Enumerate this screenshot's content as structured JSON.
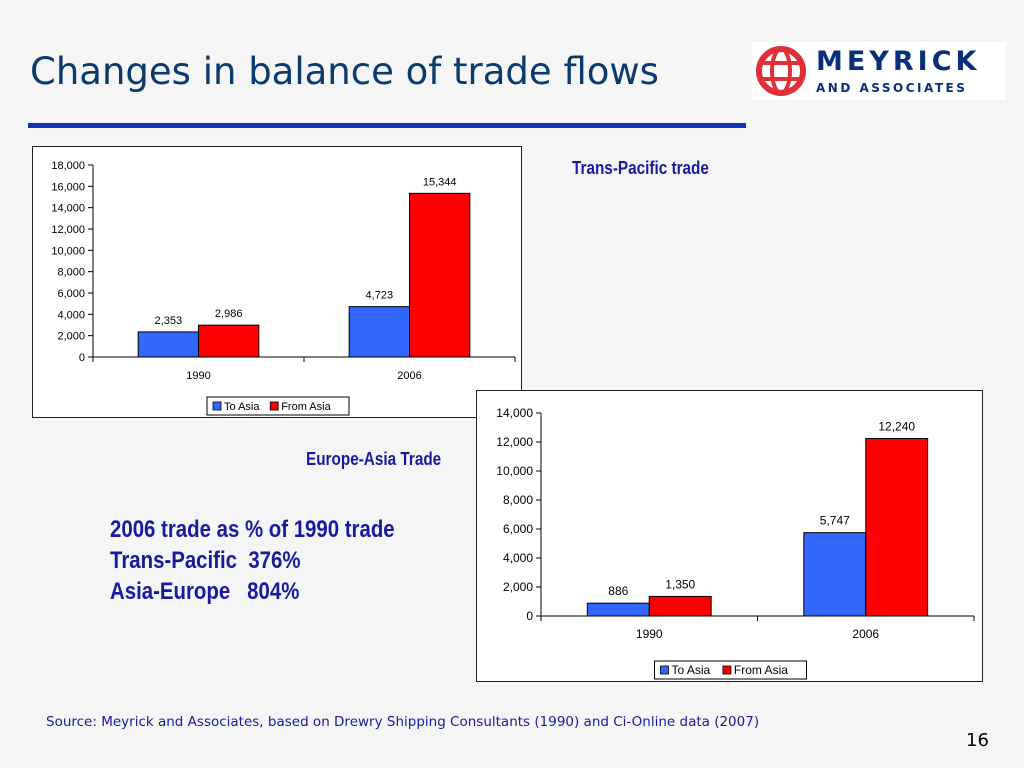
{
  "slide": {
    "title": "Changes in balance of trade flows",
    "logo": {
      "name": "MEYRICK",
      "subtitle": "AND ASSOCIATES"
    },
    "trans_pacific_label": "Trans-Pacific trade",
    "europe_asia_label": "Europe-Asia Trade",
    "summary": {
      "line1": "2006 trade as % of 1990 trade",
      "line2": "Trans-Pacific  376%",
      "line3": "Asia-Europe   804%"
    },
    "source": "Source: Meyrick and Associates, based on Drewry Shipping Consultants (1990) and Ci-Online data (2007)",
    "page_number": "16"
  },
  "colors": {
    "to_asia": "#3366ff",
    "from_asia": "#ff0000",
    "accent": "#1a1aa0"
  },
  "chart_data": [
    {
      "type": "bar",
      "categories": [
        "1990",
        "2006"
      ],
      "series": [
        {
          "name": "To Asia",
          "values": [
            2353,
            4723
          ],
          "labels": [
            "2,353",
            "4,723"
          ]
        },
        {
          "name": "From Asia",
          "values": [
            2986,
            15344
          ],
          "labels": [
            "2,986",
            "15,344"
          ]
        }
      ],
      "yticks": [
        "0",
        "2,000",
        "4,000",
        "6,000",
        "8,000",
        "10,000",
        "12,000",
        "14,000",
        "16,000",
        "18,000"
      ],
      "ylim": [
        0,
        18000
      ],
      "legend": "bottom"
    },
    {
      "type": "bar",
      "categories": [
        "1990",
        "2006"
      ],
      "series": [
        {
          "name": "To Asia",
          "values": [
            886,
            5747
          ],
          "labels": [
            "886",
            "5,747"
          ]
        },
        {
          "name": "From Asia",
          "values": [
            1350,
            12240
          ],
          "labels": [
            "1,350",
            "12,240"
          ]
        }
      ],
      "yticks": [
        "0",
        "2,000",
        "4,000",
        "6,000",
        "8,000",
        "10,000",
        "12,000",
        "14,000"
      ],
      "ylim": [
        0,
        14000
      ],
      "legend": "bottom"
    }
  ]
}
